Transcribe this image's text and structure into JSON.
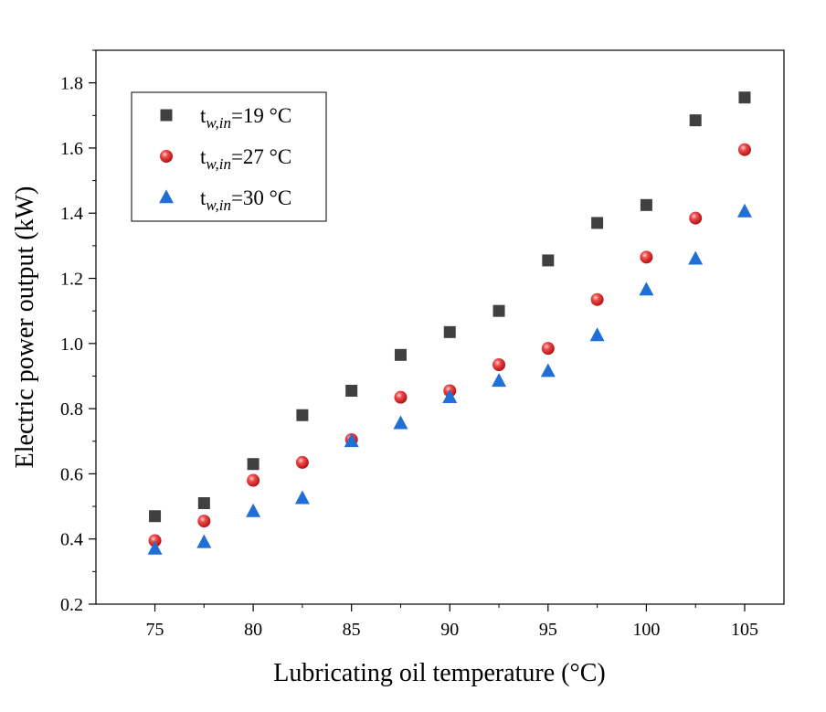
{
  "chart_data": {
    "type": "scatter",
    "xlabel": "Lubricating oil temperature (°C)",
    "ylabel": "Electric power output (kW)",
    "xlim": [
      72,
      107
    ],
    "ylim": [
      0.2,
      1.9
    ],
    "xticks": [
      75,
      80,
      85,
      90,
      95,
      100,
      105
    ],
    "yticks": [
      0.2,
      0.4,
      0.6,
      0.8,
      1.0,
      1.2,
      1.4,
      1.6,
      1.8
    ],
    "ytick_labels": [
      "0.2",
      "0.4",
      "0.6",
      "0.8",
      "1.0",
      "1.2",
      "1.4",
      "1.6",
      "1.8"
    ],
    "x": [
      75,
      77.5,
      80,
      82.5,
      85,
      87.5,
      90,
      92.5,
      95,
      97.5,
      100,
      102.5,
      105
    ],
    "legend_position": "top-left",
    "grid": false,
    "series": [
      {
        "name_main": "t",
        "name_sub": "w,in",
        "name_rest": "=19 °C",
        "marker": "square",
        "color": "#404040",
        "values": [
          0.47,
          0.51,
          0.63,
          0.78,
          0.855,
          0.965,
          1.035,
          1.1,
          1.255,
          1.37,
          1.425,
          1.685,
          1.755
        ]
      },
      {
        "name_main": "t",
        "name_sub": "w,in",
        "name_rest": "=27 °C",
        "marker": "circle",
        "color": "#e8282b",
        "values": [
          0.395,
          0.455,
          0.58,
          0.635,
          0.705,
          0.835,
          0.855,
          0.935,
          0.985,
          1.135,
          1.265,
          1.385,
          1.595
        ]
      },
      {
        "name_main": "t",
        "name_sub": "w,in",
        "name_rest": "=30 °C",
        "marker": "triangle",
        "color": "#1f6fd6",
        "values": [
          0.37,
          0.39,
          0.485,
          0.525,
          0.7,
          0.755,
          0.835,
          0.885,
          0.915,
          1.025,
          1.165,
          1.26,
          1.405
        ]
      }
    ]
  }
}
